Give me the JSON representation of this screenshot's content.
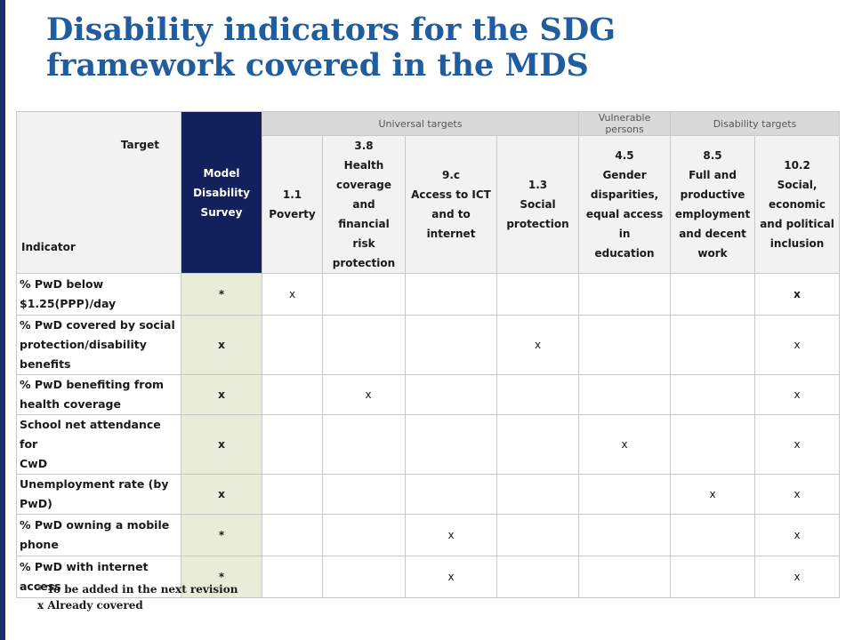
{
  "title": {
    "line1": "Disability indicators for the SDG",
    "line2": "framework covered in the MDS"
  },
  "table": {
    "corner_target": "Target",
    "corner_indicator": "Indicator",
    "mds_header": [
      "Model",
      "Disability",
      "Survey"
    ],
    "groups": [
      {
        "label": "Universal targets"
      },
      {
        "label": "Vulnerable persons"
      },
      {
        "label": "Disability targets"
      }
    ],
    "goals": [
      {
        "code": "1.1",
        "name": [
          "Poverty"
        ]
      },
      {
        "code": "3.8",
        "name": [
          "Health",
          "coverage",
          "and",
          "financial",
          "risk",
          "protection"
        ]
      },
      {
        "code": "9.c",
        "name": [
          "Access to ICT",
          "and to",
          "internet"
        ]
      },
      {
        "code": "1.3",
        "name": [
          "Social",
          "protection"
        ]
      },
      {
        "code": "4.5",
        "name": [
          "Gender",
          "disparities,",
          "equal access in",
          "education"
        ]
      },
      {
        "code": "8.5",
        "name": [
          "Full and",
          "productive",
          "employment",
          "and decent",
          "work"
        ]
      },
      {
        "code": "10.2",
        "name": [
          "Social,",
          "economic",
          "and political",
          "inclusion"
        ]
      }
    ],
    "rows": [
      {
        "label": [
          "% PwD below",
          "$1.25(PPP)/day"
        ],
        "mds": "*",
        "cells": [
          "x",
          "",
          "",
          "",
          "",
          "",
          "x"
        ]
      },
      {
        "label": [
          "% PwD covered by social",
          "protection/disability",
          "benefits"
        ],
        "mds": "x",
        "cells": [
          "",
          "",
          "",
          "x",
          "",
          "",
          "x"
        ]
      },
      {
        "label": [
          "% PwD benefiting from",
          "health coverage"
        ],
        "mds": "x",
        "cells": [
          "",
          "x",
          "",
          "",
          "",
          "",
          "x"
        ]
      },
      {
        "label": [
          "School net attendance for",
          "CwD"
        ],
        "mds": "x",
        "cells": [
          "",
          "",
          "",
          "",
          "x",
          "",
          "x"
        ]
      },
      {
        "label": [
          "Unemployment rate (by",
          "PwD)"
        ],
        "mds": "x",
        "cells": [
          "",
          "",
          "",
          "",
          "",
          "x",
          "x"
        ]
      },
      {
        "label": [
          "% PwD owning a mobile",
          "phone"
        ],
        "mds": "*",
        "cells": [
          "",
          "",
          "x",
          "",
          "",
          "",
          "x"
        ]
      },
      {
        "label": [
          "% PwD with internet",
          "access"
        ],
        "mds": "*",
        "cells": [
          "",
          "",
          "x",
          "",
          "",
          "",
          "x"
        ]
      }
    ]
  },
  "footnotes": {
    "line1": "* To be added in the next revision",
    "line2": "x Already covered"
  }
}
